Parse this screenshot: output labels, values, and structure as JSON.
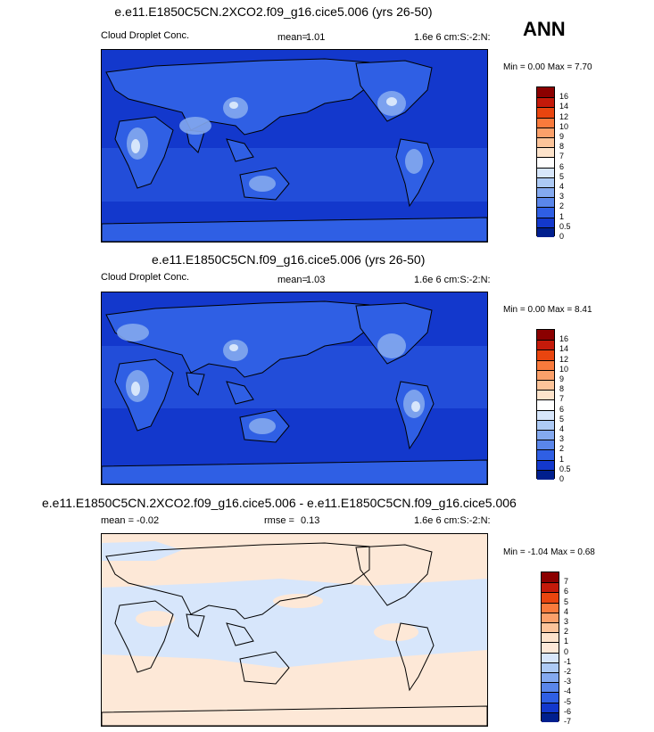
{
  "season": "ANN",
  "panels": [
    {
      "title": "e.e11.E1850C5CN.2XCO2.f09_g16.cice5.006 (yrs 26-50)",
      "left_label": "Cloud Droplet Conc.",
      "stat_label": "mean=",
      "stat_value": "1.01",
      "units": "1.6e 6 cm:S:-2:N:",
      "minmax": "Min =   0.00 Max =   7.70",
      "colorbar": {
        "labels": [
          "16",
          "14",
          "12",
          "10",
          "9",
          "8",
          "7",
          "6",
          "5",
          "4",
          "3",
          "2",
          "1",
          "0.5",
          "0"
        ],
        "colors": [
          "#8b0000",
          "#c41a0a",
          "#e9450f",
          "#f97a3c",
          "#fba06a",
          "#fcc49a",
          "#fde3cb",
          "#ffffff",
          "#d7e6fb",
          "#adcaf5",
          "#84a9ef",
          "#5a86ea",
          "#2f5fe4",
          "#1338cc",
          "#001f8e"
        ]
      }
    },
    {
      "title": "e.e11.E1850C5CN.f09_g16.cice5.006 (yrs 26-50)",
      "left_label": "Cloud Droplet Conc.",
      "stat_label": "mean=",
      "stat_value": "1.03",
      "units": "1.6e 6 cm:S:-2:N:",
      "minmax": "Min =   0.00 Max =   8.41",
      "colorbar": {
        "labels": [
          "16",
          "14",
          "12",
          "10",
          "9",
          "8",
          "7",
          "6",
          "5",
          "4",
          "3",
          "2",
          "1",
          "0.5",
          "0"
        ],
        "colors": [
          "#8b0000",
          "#c41a0a",
          "#e9450f",
          "#f97a3c",
          "#fba06a",
          "#fcc49a",
          "#fde3cb",
          "#ffffff",
          "#d7e6fb",
          "#adcaf5",
          "#84a9ef",
          "#5a86ea",
          "#2f5fe4",
          "#1338cc",
          "#001f8e"
        ]
      }
    },
    {
      "title": "e.e11.E1850C5CN.2XCO2.f09_g16.cice5.006 - e.e11.E1850C5CN.f09_g16.cice5.006",
      "left_label": "mean =  -0.02",
      "stat_label": "rmse =",
      "stat_value": "0.13",
      "units": "1.6e 6 cm:S:-2:N:",
      "minmax": "Min =  -1.04 Max =   0.68",
      "colorbar": {
        "labels": [
          "7",
          "6",
          "5",
          "4",
          "3",
          "2",
          "1",
          "0",
          "-1",
          "-2",
          "-3",
          "-4",
          "-5",
          "-6",
          "-7"
        ],
        "colors": [
          "#8b0000",
          "#c41a0a",
          "#e9450f",
          "#f97a3c",
          "#fba06a",
          "#fcc49a",
          "#fde3cb",
          "#fde8d7",
          "#d7e6fb",
          "#adcaf5",
          "#84a9ef",
          "#5a86ea",
          "#2f5fe4",
          "#1338cc",
          "#001f8e"
        ]
      }
    }
  ]
}
